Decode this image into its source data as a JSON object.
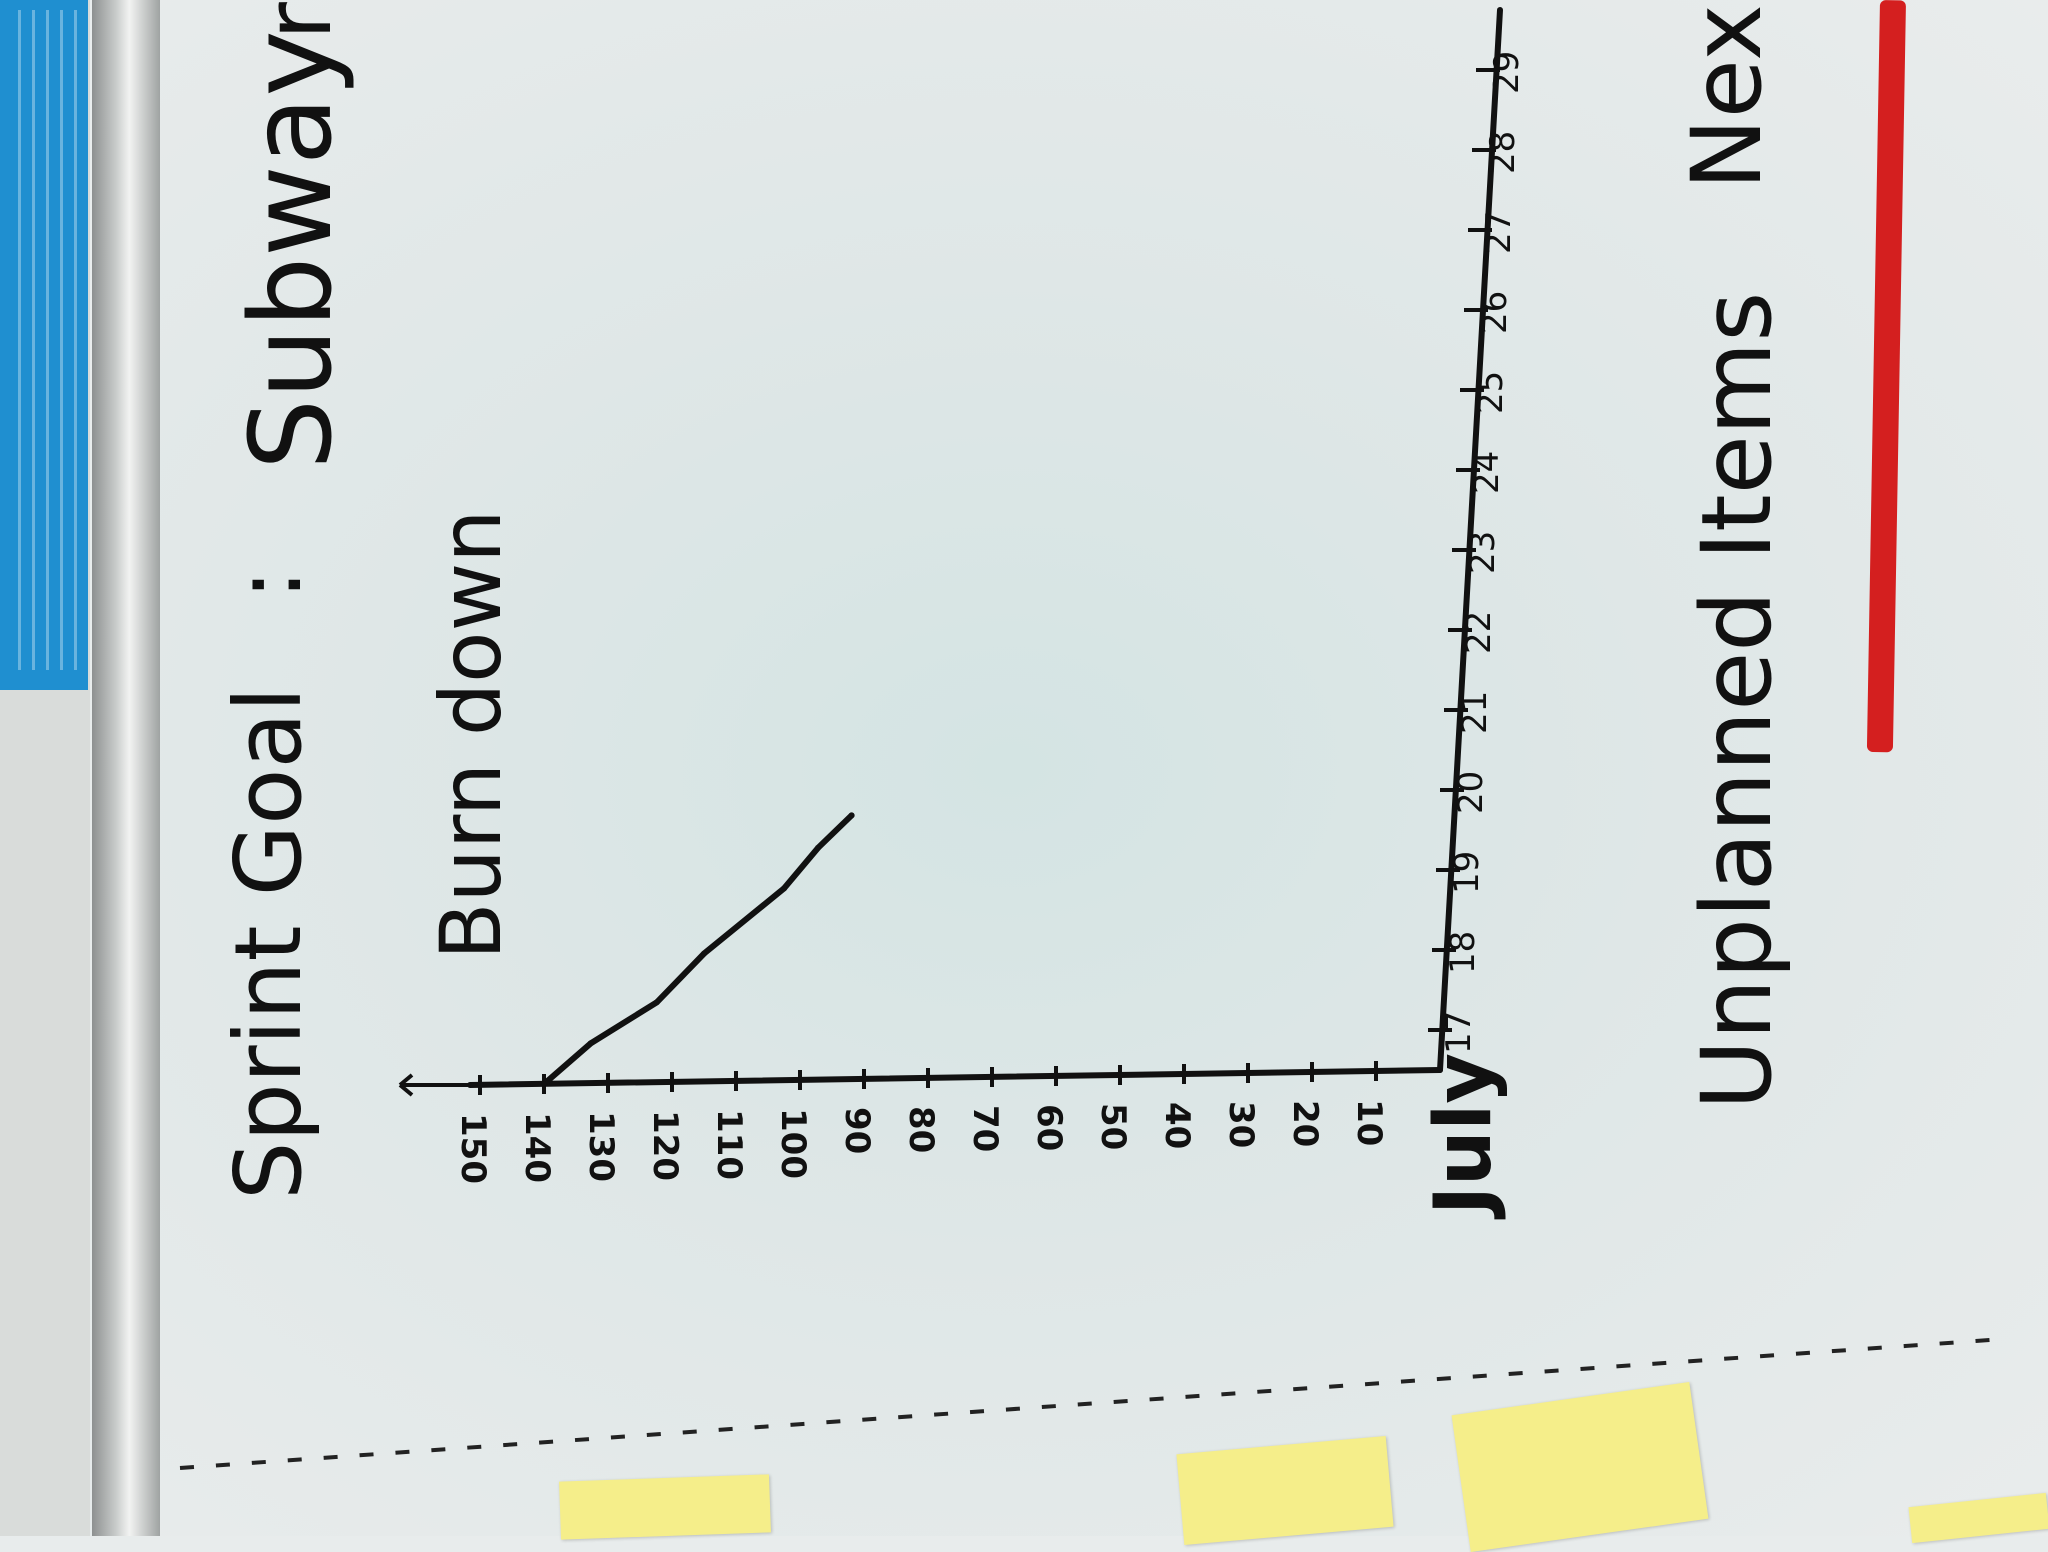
{
  "board": {
    "title_prefix": "Sprint Goal",
    "title_sep": ":",
    "title_goal": "Subway",
    "title_cut": "r",
    "chart_caption": "Burn down",
    "month": "July",
    "unplanned_label": "Unplanned Items",
    "next_label": "Nex"
  },
  "chart_data": {
    "type": "line",
    "title": "Burn down",
    "xlabel": "July",
    "ylabel": "",
    "y_ticks": [
      "150",
      "140",
      "130",
      "120",
      "110",
      "100",
      "90",
      "80",
      "70",
      "60",
      "50",
      "40",
      "30",
      "20",
      "10"
    ],
    "x_ticks": [
      "17",
      "18",
      "19",
      "20",
      "21",
      "22",
      "23",
      "24",
      "25",
      "26",
      "27",
      "28",
      "29"
    ],
    "ylim": [
      0,
      150
    ],
    "series": [
      {
        "values": [
          {
            "x": 17.0,
            "y": 140
          },
          {
            "x": 17.5,
            "y": 133
          },
          {
            "x": 18.0,
            "y": 123
          },
          {
            "x": 18.6,
            "y": 116
          },
          {
            "x": 19.4,
            "y": 104
          },
          {
            "x": 19.9,
            "y": 99
          },
          {
            "x": 20.3,
            "y": 94
          }
        ]
      }
    ]
  },
  "colors": {
    "ink": "#111111",
    "marker_red": "#d41f1f",
    "sticky_note": "#f5ee8a",
    "poster_blue": "#1f8fd0"
  }
}
